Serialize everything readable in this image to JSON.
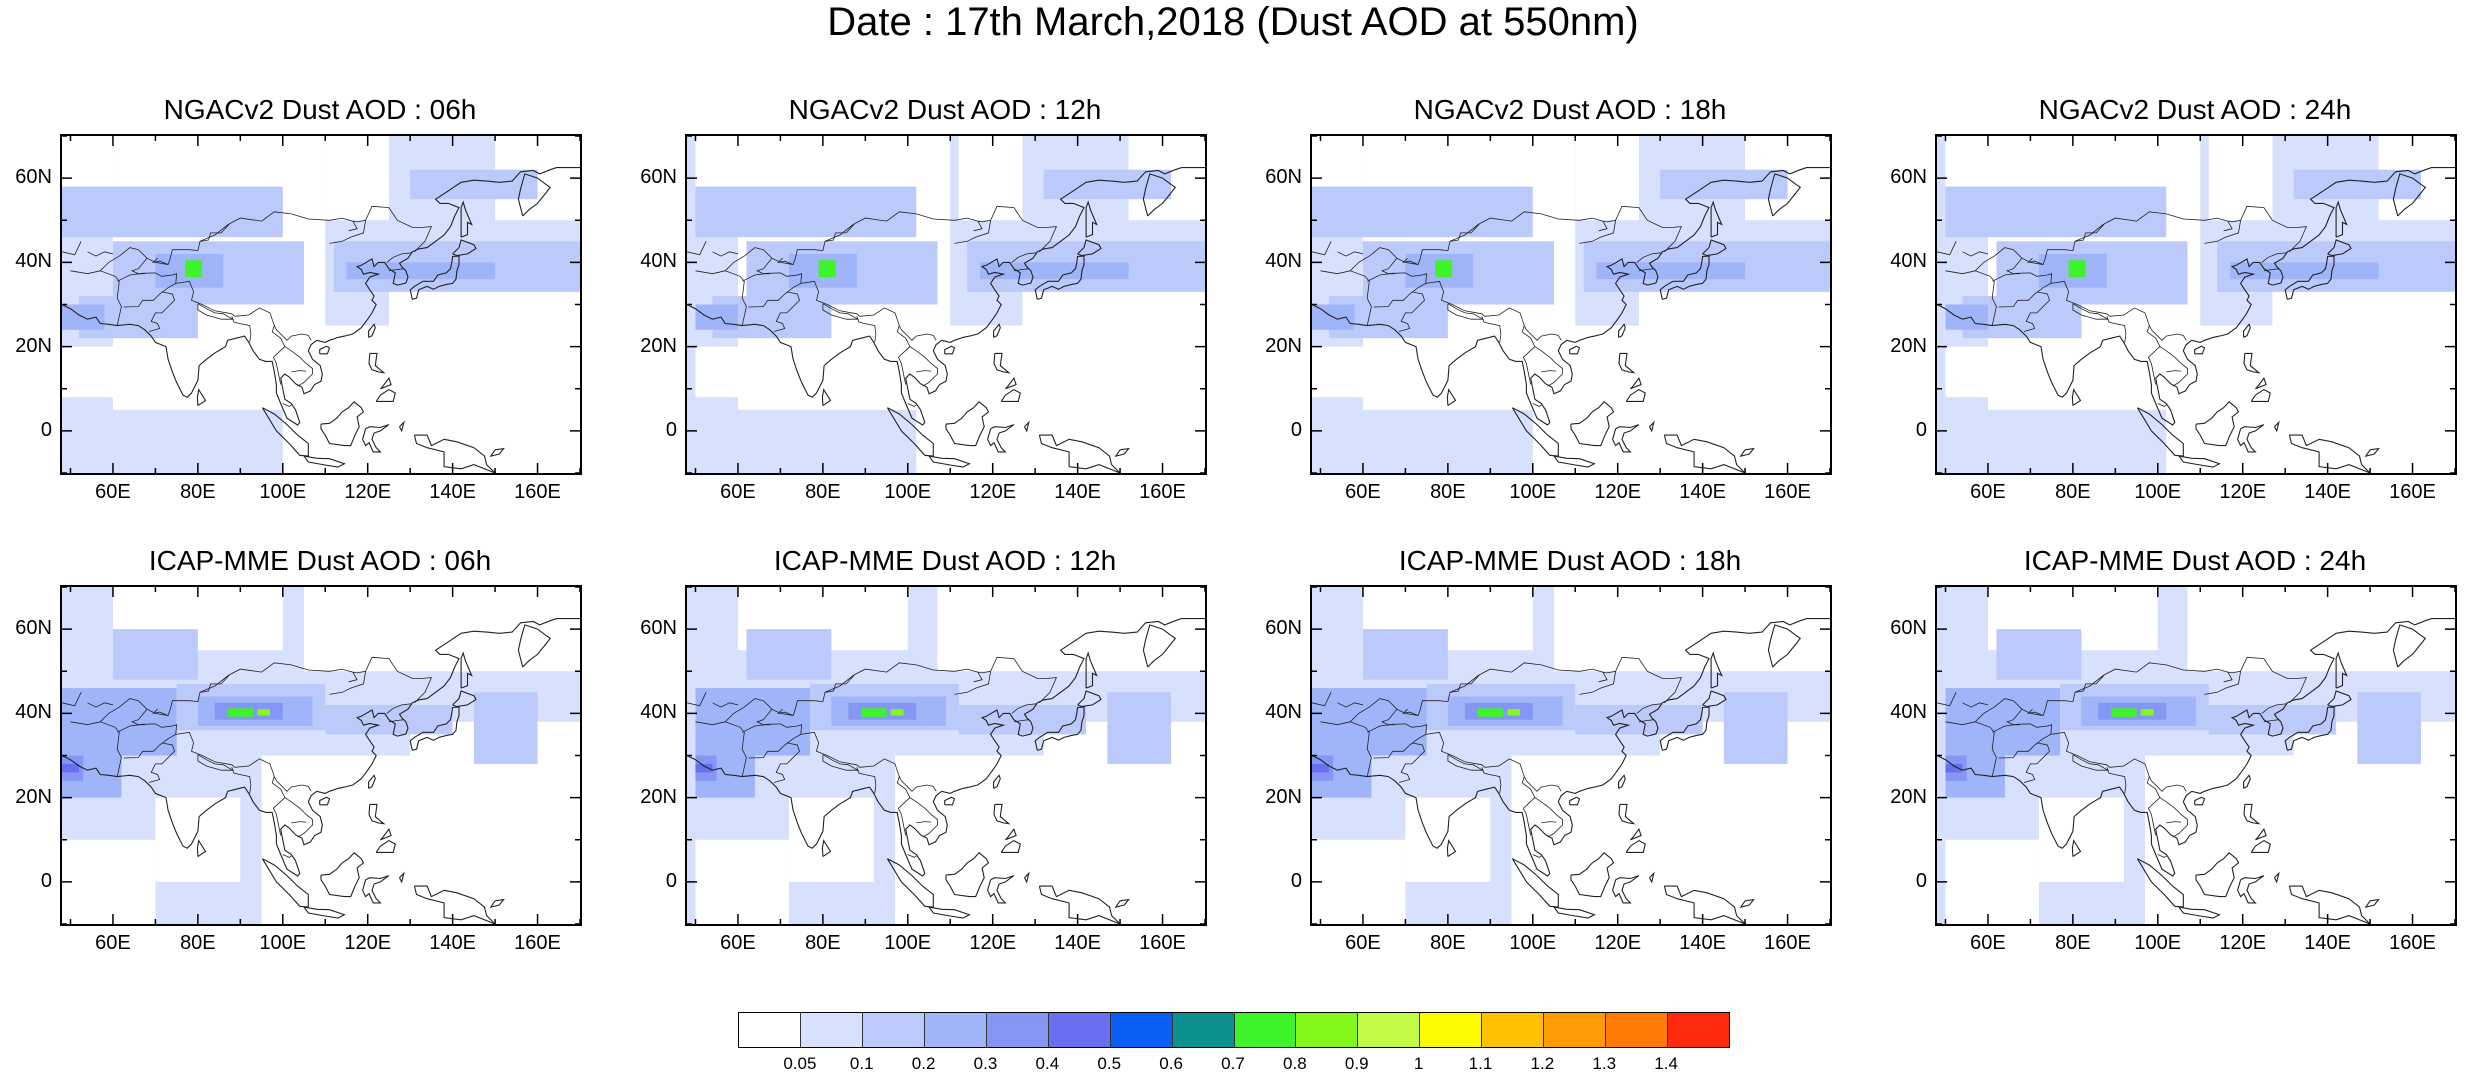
{
  "title": "Date : 17th March,2018 (Dust AOD at 550nm)",
  "panels": [
    {
      "title": "NGACv2 Dust AOD : 06h",
      "model": "ngac"
    },
    {
      "title": "NGACv2 Dust AOD : 12h",
      "model": "ngac"
    },
    {
      "title": "NGACv2 Dust AOD : 18h",
      "model": "ngac"
    },
    {
      "title": "NGACv2 Dust AOD : 24h",
      "model": "ngac"
    },
    {
      "title": "ICAP-MME Dust AOD : 06h",
      "model": "icap"
    },
    {
      "title": "ICAP-MME Dust AOD : 12h",
      "model": "icap"
    },
    {
      "title": "ICAP-MME Dust AOD : 18h",
      "model": "icap"
    },
    {
      "title": "ICAP-MME Dust AOD : 24h",
      "model": "icap"
    }
  ],
  "lat_ticks": [
    "60N",
    "40N",
    "20N",
    "0"
  ],
  "lon_ticks": [
    "60E",
    "80E",
    "100E",
    "120E",
    "140E",
    "160E"
  ],
  "colorbar": {
    "labels": [
      "0.05",
      "0.1",
      "0.2",
      "0.3",
      "0.4",
      "0.5",
      "0.6",
      "0.7",
      "0.8",
      "0.9",
      "1",
      "1.1",
      "1.2",
      "1.3",
      "1.4"
    ],
    "colors": [
      "#ffffff",
      "#d7e0fc",
      "#bccafb",
      "#9fb4f9",
      "#8597f4",
      "#6a6ef0",
      "#0a5ff5",
      "#0c9190",
      "#3ef32a",
      "#84f81b",
      "#c2fa46",
      "#fffb02",
      "#ffc202",
      "#ff9c05",
      "#ff7a06",
      "#ff2a0d"
    ]
  }
}
